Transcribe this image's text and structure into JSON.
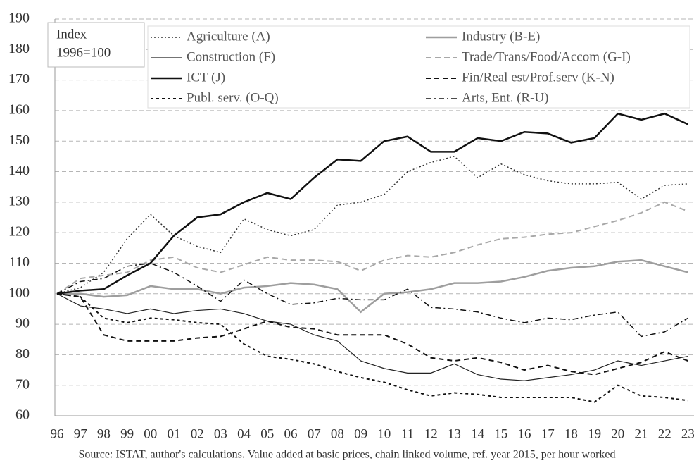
{
  "chart_data": {
    "type": "line",
    "annotation": [
      "Index",
      "1996=100"
    ],
    "source": "Source: ISTAT, author's calculations. Value added at basic prices, chain linked volume, ref. year 2015, per hour worked",
    "categories": [
      "96",
      "97",
      "98",
      "99",
      "00",
      "01",
      "02",
      "03",
      "04",
      "05",
      "06",
      "07",
      "08",
      "09",
      "10",
      "11",
      "12",
      "13",
      "14",
      "15",
      "16",
      "17",
      "18",
      "19",
      "20",
      "21",
      "22",
      "23"
    ],
    "ylim": [
      60,
      190
    ],
    "yticks": [
      60,
      70,
      80,
      90,
      100,
      110,
      120,
      130,
      140,
      150,
      160,
      170,
      180,
      190
    ],
    "grid": true,
    "series": [
      {
        "name": "Agriculture (A)",
        "color": "#333333",
        "dash": "2,3",
        "width": 1.5,
        "values": [
          100,
          102,
          107,
          118,
          126,
          119,
          115.5,
          113.5,
          124.5,
          121,
          119,
          121,
          129,
          130,
          132.5,
          140,
          143,
          145,
          138,
          142.5,
          139,
          137,
          136,
          136,
          136.5,
          131,
          135.5,
          136
        ]
      },
      {
        "name": "Industry (B-E)",
        "color": "#9e9e9e",
        "dash": "",
        "width": 2.5,
        "values": [
          100,
          100,
          99,
          99.5,
          102.5,
          101.5,
          101.5,
          100,
          102,
          102.5,
          103.5,
          103,
          101.5,
          94,
          100,
          100.5,
          101.5,
          103.5,
          103.5,
          104,
          105.5,
          107.5,
          108.5,
          109,
          110.5,
          111,
          109,
          107
        ]
      },
      {
        "name": "Construction (F)",
        "color": "#222222",
        "dash": "",
        "width": 1.2,
        "values": [
          100,
          96,
          95,
          93.5,
          95,
          93.5,
          94.5,
          95,
          93.5,
          91,
          90,
          86.5,
          84.5,
          78,
          75.5,
          74,
          74,
          77,
          73.5,
          72,
          71.5,
          72.5,
          73.5,
          75,
          78,
          76.5,
          78,
          79.5
        ]
      },
      {
        "name": "Trade/Trans/Food/Accom (G-I)",
        "color": "#a8a8a8",
        "dash": "8,5",
        "width": 2,
        "values": [
          100,
          105,
          106,
          107,
          111,
          112,
          108.5,
          107,
          109.5,
          112,
          111,
          111,
          110.5,
          107.5,
          111,
          112.5,
          112,
          113.5,
          116,
          118,
          118.5,
          119.5,
          120,
          122,
          124,
          126.5,
          130,
          127
        ]
      },
      {
        "name": "ICT (J)",
        "color": "#111111",
        "dash": "",
        "width": 2.5,
        "values": [
          100,
          101,
          101.5,
          106,
          110,
          119,
          125,
          126,
          130,
          133,
          131,
          138,
          144,
          143.5,
          150,
          151.5,
          146.5,
          146.5,
          151,
          150,
          153,
          152.5,
          149.5,
          151,
          159,
          157,
          159,
          155.5
        ]
      },
      {
        "name": "Fin/Real est/Prof.serv (K-N)",
        "color": "#111111",
        "dash": "7,5",
        "width": 2,
        "values": [
          100,
          99,
          86.5,
          84.5,
          84.5,
          84.5,
          85.5,
          86,
          88.5,
          91,
          89,
          88.5,
          86.5,
          86.5,
          86.5,
          83.5,
          79,
          78,
          79,
          77.5,
          75,
          76.5,
          74.5,
          73.5,
          75.5,
          77.5,
          81,
          78
        ]
      },
      {
        "name": "Publ. serv. (O-Q)",
        "color": "#111111",
        "dash": "4,4",
        "width": 2,
        "values": [
          100,
          99,
          92,
          90.5,
          92,
          91.5,
          90.5,
          90,
          83.5,
          79.5,
          78.5,
          77,
          74.5,
          72.5,
          71,
          68.5,
          66.5,
          67.5,
          67,
          66,
          66,
          66,
          66,
          64.5,
          70,
          66.5,
          66,
          65
        ]
      },
      {
        "name": "Arts, Ent. (R-U)",
        "color": "#111111",
        "dash": "8,4,2,4",
        "width": 1.5,
        "values": [
          100,
          104,
          105,
          109,
          110,
          107,
          102.5,
          97.5,
          104.5,
          100,
          96.5,
          97,
          98.5,
          98,
          98,
          101.5,
          95.5,
          95,
          94,
          92,
          90.5,
          92,
          91.5,
          93,
          94,
          86,
          87.5,
          92
        ]
      }
    ]
  }
}
